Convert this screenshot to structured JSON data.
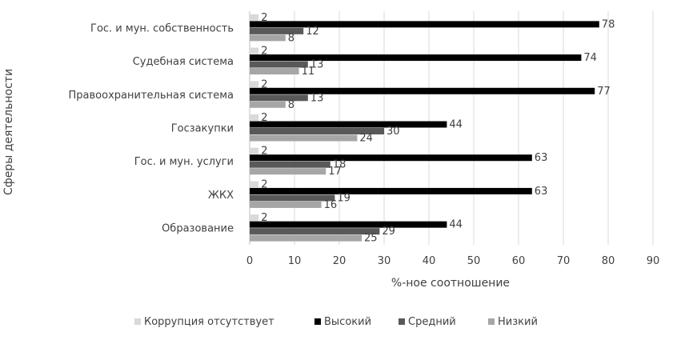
{
  "chart_data": {
    "type": "bar",
    "orientation": "horizontal",
    "title": "",
    "xlabel": "%-ное соотношение",
    "ylabel": "Сферы деятельности",
    "xlim": [
      0,
      90
    ],
    "xticks": [
      0,
      10,
      20,
      30,
      40,
      50,
      60,
      70,
      80,
      90
    ],
    "grid": "vertical",
    "legend_position": "bottom",
    "categories": [
      "Гос. и мун. собственность",
      "Судебная система",
      "Правоохранительная система",
      "Госзакупки",
      "Гос. и мун. услуги",
      "ЖКХ",
      "Образование"
    ],
    "series": [
      {
        "name": "Коррупция отсутствует",
        "color": "#d9d9d9",
        "values": [
          2,
          2,
          2,
          2,
          2,
          2,
          2
        ]
      },
      {
        "name": "Высокий",
        "color": "#000000",
        "values": [
          78,
          74,
          77,
          44,
          63,
          63,
          44
        ]
      },
      {
        "name": "Средний",
        "color": "#595959",
        "values": [
          12,
          13,
          13,
          30,
          18,
          19,
          29
        ]
      },
      {
        "name": "Низкий",
        "color": "#a6a6a6",
        "values": [
          8,
          11,
          8,
          24,
          17,
          16,
          25
        ]
      }
    ]
  }
}
